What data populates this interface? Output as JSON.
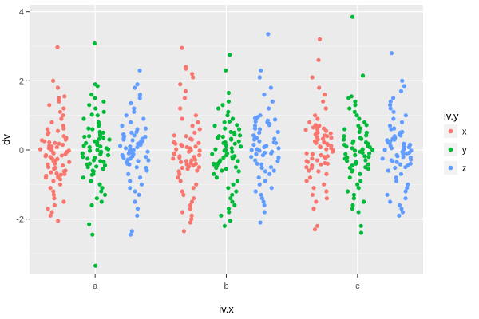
{
  "chart_data": {
    "type": "scatter",
    "title": "",
    "xlabel": "iv.x",
    "ylabel": "dv",
    "categories": [
      "a",
      "b",
      "c"
    ],
    "y_ticks": [
      -2,
      0,
      2,
      4
    ],
    "ylim": [
      -3.6,
      4.2
    ],
    "grid": true,
    "legend": {
      "title": "iv.y",
      "placement": "right",
      "entries": [
        "x",
        "y",
        "z"
      ]
    },
    "colors": {
      "x": "#F8766D",
      "y": "#00BA38",
      "z": "#619CFF",
      "panel": "#EBEBEB",
      "grid_major": "#FFFFFF",
      "grid_minor": "#F5F5F5"
    },
    "series": [
      {
        "name": "x",
        "x_category": "a",
        "values": [
          2.97,
          2.0,
          1.8,
          1.55,
          1.5,
          1.4,
          1.3,
          1.2,
          1.1,
          1.0,
          0.9,
          0.8,
          0.7,
          0.6,
          0.55,
          0.5,
          0.45,
          0.4,
          0.35,
          0.3,
          0.25,
          0.2,
          0.15,
          0.1,
          0.05,
          0.0,
          -0.02,
          -0.05,
          -0.08,
          -0.1,
          -0.12,
          -0.15,
          -0.18,
          -0.2,
          -0.25,
          -0.3,
          -0.35,
          -0.4,
          -0.45,
          -0.5,
          -0.55,
          -0.6,
          -0.62,
          -0.65,
          -0.68,
          -0.7,
          -0.72,
          -0.75,
          -0.78,
          -0.8,
          -0.85,
          -0.9,
          -1.0,
          -1.1,
          -1.2,
          -1.3,
          -1.4,
          -1.5,
          -1.6,
          -1.7,
          -1.8,
          -1.9,
          -2.05,
          0.02,
          0.12,
          0.22,
          -0.32,
          -0.42,
          0.62,
          -0.52,
          0.08,
          -0.06,
          0.18,
          -0.16,
          0.28,
          -0.26
        ]
      },
      {
        "name": "y",
        "x_category": "a",
        "values": [
          3.08,
          1.9,
          1.85,
          1.6,
          1.5,
          1.4,
          1.3,
          1.2,
          1.1,
          1.0,
          0.9,
          0.8,
          0.7,
          0.6,
          0.5,
          0.45,
          0.4,
          0.35,
          0.3,
          0.25,
          0.2,
          0.15,
          0.1,
          0.05,
          0.0,
          -0.05,
          -0.1,
          -0.15,
          -0.2,
          -0.25,
          -0.3,
          -0.35,
          -0.4,
          -0.45,
          -0.5,
          -0.55,
          -0.6,
          -0.7,
          -0.8,
          -0.9,
          -1.0,
          -1.1,
          -1.2,
          -1.3,
          -1.4,
          -1.5,
          -1.6,
          -2.15,
          -2.45,
          -3.35,
          0.32,
          0.42,
          -0.12,
          -0.22,
          0.72,
          0.02,
          -0.32,
          0.12,
          0.22,
          -0.42,
          0.52,
          -0.62,
          0.08,
          -0.08,
          1.02,
          -0.72,
          0.62,
          -0.02,
          0.38,
          -0.48
        ]
      },
      {
        "name": "z",
        "x_category": "a",
        "values": [
          2.3,
          1.9,
          1.8,
          1.6,
          1.5,
          1.35,
          1.2,
          1.1,
          1.0,
          0.9,
          0.8,
          0.7,
          0.6,
          0.5,
          0.45,
          0.4,
          0.35,
          0.3,
          0.25,
          0.2,
          0.15,
          0.1,
          0.05,
          0.0,
          -0.05,
          -0.1,
          -0.15,
          -0.2,
          -0.25,
          -0.3,
          -0.35,
          -0.4,
          -0.5,
          -0.6,
          -0.7,
          -0.8,
          -0.9,
          -1.0,
          -1.1,
          -1.2,
          -1.3,
          -1.5,
          -1.7,
          -1.9,
          -2.35,
          -2.45,
          0.32,
          0.12,
          -0.22,
          0.42,
          -0.12,
          0.02,
          0.22,
          -0.32,
          0.52,
          -0.02,
          0.28,
          -0.18,
          0.08,
          -0.42,
          0.62,
          -0.52,
          0.18,
          -0.08,
          0.38,
          -0.28
        ]
      },
      {
        "name": "x",
        "x_category": "b",
        "values": [
          2.95,
          2.4,
          2.35,
          2.2,
          2.1,
          1.9,
          1.7,
          1.5,
          1.2,
          1.0,
          0.9,
          0.8,
          0.7,
          0.6,
          0.5,
          0.4,
          0.3,
          0.2,
          0.15,
          0.1,
          0.05,
          0.0,
          -0.05,
          -0.1,
          -0.15,
          -0.2,
          -0.25,
          -0.3,
          -0.35,
          -0.4,
          -0.45,
          -0.5,
          -0.55,
          -0.6,
          -0.7,
          -0.8,
          -0.9,
          -1.0,
          -1.1,
          -1.2,
          -1.3,
          -1.4,
          -1.5,
          -1.6,
          -1.7,
          -1.8,
          -1.9,
          -2.0,
          -2.1,
          -2.35,
          0.02,
          -0.12,
          -0.22,
          0.12,
          -0.32,
          -0.42,
          0.22,
          -0.52,
          0.32,
          -0.02,
          -0.62,
          0.42,
          -0.18,
          -0.28,
          0.08,
          -0.38,
          -0.48,
          0.18
        ]
      },
      {
        "name": "y",
        "x_category": "b",
        "values": [
          2.75,
          2.3,
          1.65,
          1.4,
          1.3,
          1.2,
          1.1,
          1.0,
          0.9,
          0.8,
          0.7,
          0.6,
          0.5,
          0.45,
          0.4,
          0.35,
          0.3,
          0.25,
          0.2,
          0.15,
          0.1,
          0.05,
          0.0,
          -0.05,
          -0.1,
          -0.15,
          -0.2,
          -0.25,
          -0.3,
          -0.35,
          -0.4,
          -0.45,
          -0.5,
          -0.55,
          -0.6,
          -0.7,
          -0.8,
          -0.9,
          -1.0,
          -1.1,
          -1.2,
          -1.3,
          -1.4,
          -1.5,
          -1.6,
          -1.7,
          -1.8,
          -1.9,
          -2.05,
          -2.2,
          0.32,
          0.12,
          -0.32,
          0.22,
          -0.12,
          0.52,
          -0.52,
          0.02,
          0.42,
          -0.22,
          0.62,
          -0.42,
          0.72,
          -0.02,
          0.82,
          -0.62,
          0.18,
          -0.18,
          0.38,
          -0.38
        ]
      },
      {
        "name": "z",
        "x_category": "b",
        "values": [
          3.35,
          2.3,
          2.1,
          1.8,
          1.6,
          1.4,
          1.2,
          1.0,
          0.95,
          0.9,
          0.85,
          0.8,
          0.75,
          0.7,
          0.6,
          0.5,
          0.4,
          0.35,
          0.3,
          0.25,
          0.2,
          0.15,
          0.1,
          0.05,
          0.0,
          -0.05,
          -0.1,
          -0.15,
          -0.2,
          -0.3,
          -0.4,
          -0.5,
          -0.6,
          -0.7,
          -0.8,
          -0.9,
          -1.0,
          -1.1,
          -1.2,
          -1.3,
          -1.4,
          -1.5,
          -1.6,
          -1.8,
          -2.1,
          0.92,
          0.88,
          0.82,
          0.12,
          -0.22,
          0.32,
          -0.12,
          0.42,
          0.02,
          -0.32,
          0.22,
          -0.42,
          0.52,
          -0.02,
          0.62,
          -0.52,
          0.72,
          -0.62,
          0.08,
          -0.08
        ]
      },
      {
        "name": "x",
        "x_category": "c",
        "values": [
          3.2,
          2.6,
          2.1,
          1.8,
          1.6,
          1.4,
          1.2,
          1.0,
          0.9,
          0.8,
          0.7,
          0.65,
          0.6,
          0.55,
          0.5,
          0.45,
          0.4,
          0.35,
          0.3,
          0.25,
          0.2,
          0.15,
          0.1,
          0.05,
          0.0,
          -0.05,
          -0.1,
          -0.15,
          -0.2,
          -0.25,
          -0.3,
          -0.35,
          -0.4,
          -0.45,
          -0.5,
          -0.6,
          -0.7,
          -0.8,
          -0.9,
          -1.0,
          -1.1,
          -1.2,
          -1.3,
          -1.4,
          -1.5,
          -1.7,
          -2.2,
          -2.3,
          0.72,
          0.62,
          0.52,
          0.42,
          0.32,
          0.22,
          0.12,
          0.02,
          -0.12,
          -0.22,
          -0.32,
          -0.42,
          -0.52,
          0.68,
          0.58,
          0.48,
          -0.62,
          0.18,
          -0.18,
          0.38,
          -0.38,
          0.08
        ]
      },
      {
        "name": "y",
        "x_category": "c",
        "values": [
          3.85,
          2.15,
          1.55,
          1.5,
          1.4,
          1.3,
          1.2,
          1.1,
          1.0,
          0.9,
          0.8,
          0.7,
          0.6,
          0.5,
          0.4,
          0.35,
          0.3,
          0.25,
          0.2,
          0.15,
          0.1,
          0.05,
          0.0,
          -0.05,
          -0.1,
          -0.15,
          -0.2,
          -0.25,
          -0.3,
          -0.35,
          -0.4,
          -0.45,
          -0.5,
          -0.55,
          -0.6,
          -0.7,
          -0.8,
          -0.9,
          -1.0,
          -1.1,
          -1.2,
          -1.3,
          -1.4,
          -1.5,
          -1.6,
          -1.7,
          -1.8,
          -2.2,
          -2.4,
          0.32,
          0.12,
          -0.22,
          0.42,
          -0.12,
          0.02,
          0.22,
          -0.32,
          0.52,
          -0.02,
          -0.42,
          0.62,
          -0.52,
          0.72,
          -0.62,
          0.08,
          -0.08,
          0.18,
          -0.18
        ]
      },
      {
        "name": "z",
        "x_category": "c",
        "values": [
          2.8,
          2.0,
          1.85,
          1.7,
          1.5,
          1.4,
          1.3,
          1.2,
          1.1,
          1.0,
          0.9,
          0.8,
          0.7,
          0.6,
          0.5,
          0.45,
          0.4,
          0.35,
          0.3,
          0.25,
          0.2,
          0.15,
          0.1,
          0.05,
          0.0,
          -0.05,
          -0.1,
          -0.15,
          -0.2,
          -0.25,
          -0.3,
          -0.35,
          -0.4,
          -0.45,
          -0.5,
          -0.6,
          -0.7,
          -0.8,
          -0.9,
          -1.0,
          -1.1,
          -1.2,
          -1.3,
          -1.4,
          -1.5,
          -1.6,
          -1.7,
          -1.8,
          -1.9,
          0.32,
          0.12,
          -0.22,
          0.42,
          -0.12,
          0.02,
          0.22,
          -0.32,
          0.52,
          -0.02,
          -0.42,
          0.62,
          -0.52,
          0.08,
          -0.08,
          0.18,
          -0.18,
          0.28,
          -0.28
        ]
      }
    ]
  }
}
